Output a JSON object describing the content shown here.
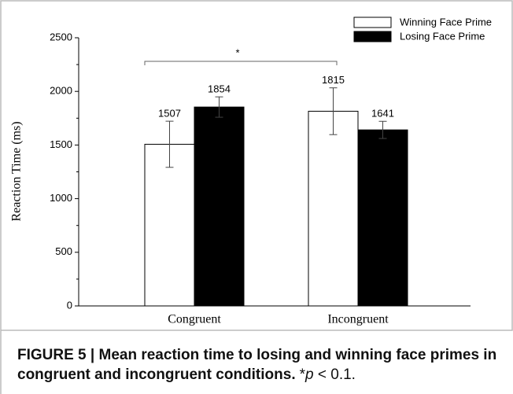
{
  "chart_data": {
    "type": "bar",
    "y_label": "Reaction Time (ms)",
    "categories": [
      "Congruent",
      "Incongruent"
    ],
    "series": [
      {
        "name": "Winning Face Prime",
        "color": "#ffffff",
        "values": [
          1507,
          1815
        ],
        "errors": [
          215,
          218
        ]
      },
      {
        "name": "Losing Face Prime",
        "color": "#000000",
        "values": [
          1854,
          1641
        ],
        "errors": [
          95,
          80
        ]
      }
    ],
    "ylim": [
      0,
      2500
    ],
    "yticks": [
      0,
      500,
      1000,
      1500,
      2000,
      2500
    ],
    "yminor": [
      250,
      750,
      1250,
      1750,
      2250
    ],
    "annotation": {
      "text": "*",
      "y": 2280
    },
    "legend": "top-right"
  },
  "caption": {
    "bold": "FIGURE 5 | Mean reaction time to losing and winning face primes in",
    "bold2": "congruent and incongruent conditions.",
    "note_star": "*",
    "note_italic": "p",
    "note_rest": " < 0.1."
  }
}
